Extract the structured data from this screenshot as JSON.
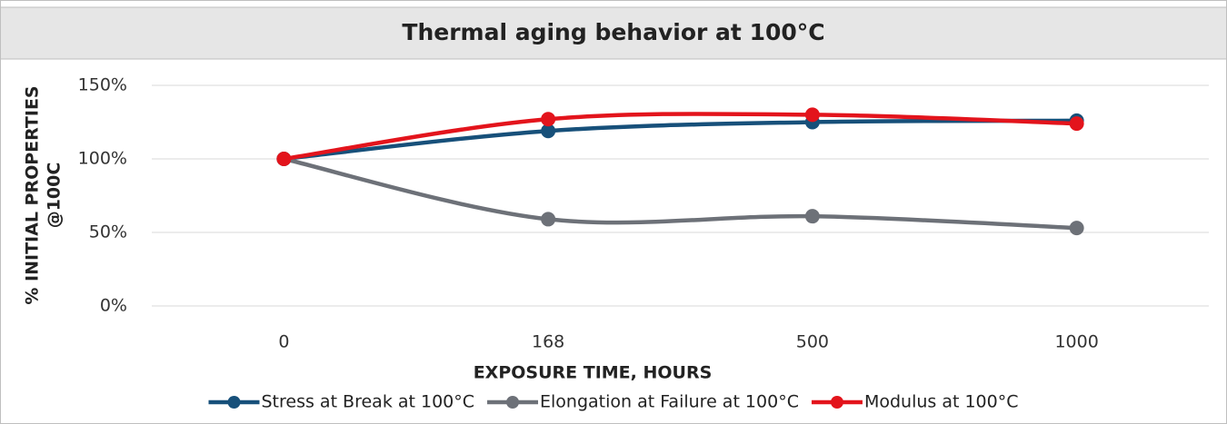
{
  "chart_data": {
    "type": "line",
    "title": "Thermal aging behavior at 100°C",
    "xlabel": "EXPOSURE TIME, HOURS",
    "ylabel": [
      "% INITIAL PROPERTIES",
      "@100C"
    ],
    "categories": [
      "0",
      "168",
      "500",
      "1000"
    ],
    "series": [
      {
        "name": "Stress at Break at 100°C",
        "color": "#17507a",
        "values": [
          100,
          119,
          125,
          126
        ]
      },
      {
        "name": "Elongation at Failure at 100°C",
        "color": "#6d7178",
        "values": [
          100,
          59,
          61,
          53
        ]
      },
      {
        "name": "Modulus at 100°C",
        "color": "#e3141c",
        "values": [
          100,
          127,
          130,
          124
        ]
      }
    ],
    "ylim": [
      0,
      150
    ],
    "yticks": [
      {
        "value": 0,
        "label": "0%"
      },
      {
        "value": 50,
        "label": "50%"
      },
      {
        "value": 100,
        "label": "100%"
      },
      {
        "value": 150,
        "label": "150%"
      }
    ],
    "grid": true,
    "legend": "bottom",
    "smooth": true
  }
}
